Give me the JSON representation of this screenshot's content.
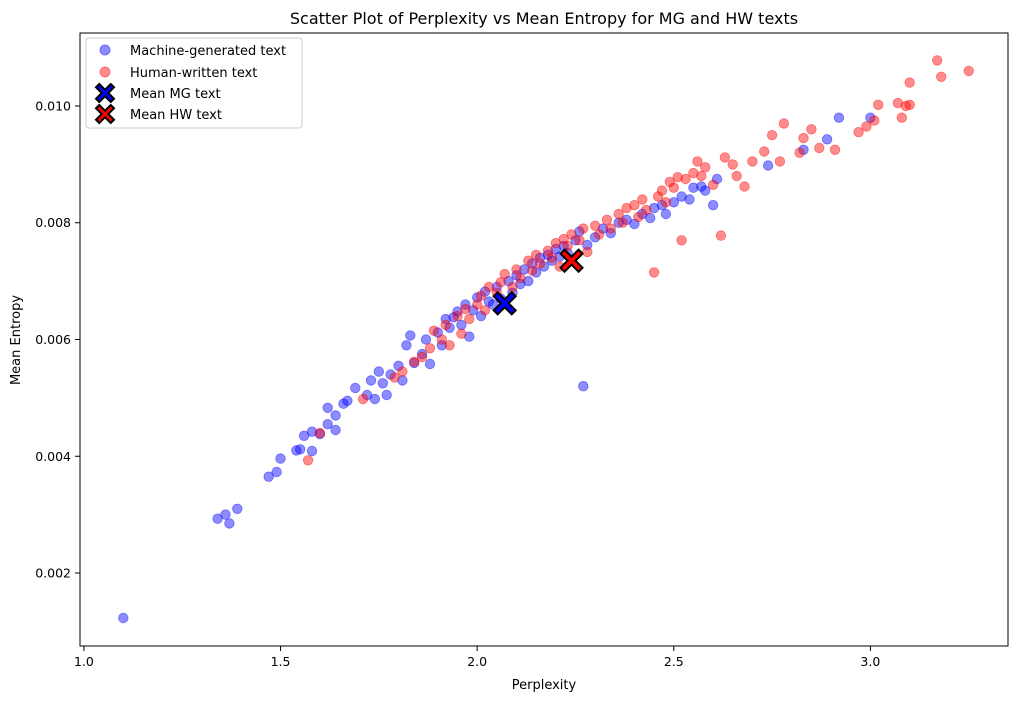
{
  "chart_data": {
    "type": "scatter",
    "title": "Scatter Plot of Perplexity vs Mean Entropy for MG and HW texts",
    "xlabel": "Perplexity",
    "ylabel": "Mean Entropy",
    "xlim": [
      0.99,
      3.35
    ],
    "ylim": [
      0.00075,
      0.01125
    ],
    "xticks": [
      1.0,
      1.5,
      2.0,
      2.5,
      3.0
    ],
    "xtick_labels": [
      "1.0",
      "1.5",
      "2.0",
      "2.5",
      "3.0"
    ],
    "yticks": [
      0.002,
      0.004,
      0.006,
      0.008,
      0.01
    ],
    "ytick_labels": [
      "0.002",
      "0.004",
      "0.006",
      "0.008",
      "0.010"
    ],
    "grid": false,
    "legend_position": "top-left",
    "series": [
      {
        "name": "Machine-generated text",
        "color": "#0000ff",
        "marker": "circle",
        "opacity": 0.45,
        "points": [
          [
            1.1,
            0.00123
          ],
          [
            1.34,
            0.00293
          ],
          [
            1.36,
            0.003
          ],
          [
            1.37,
            0.00285
          ],
          [
            1.39,
            0.0031
          ],
          [
            1.47,
            0.00365
          ],
          [
            1.49,
            0.00373
          ],
          [
            1.5,
            0.00396
          ],
          [
            1.54,
            0.0041
          ],
          [
            1.55,
            0.00412
          ],
          [
            1.56,
            0.00435
          ],
          [
            1.58,
            0.00409
          ],
          [
            1.58,
            0.00442
          ],
          [
            1.6,
            0.00438
          ],
          [
            1.62,
            0.00455
          ],
          [
            1.62,
            0.00483
          ],
          [
            1.64,
            0.00445
          ],
          [
            1.64,
            0.0047
          ],
          [
            1.66,
            0.0049
          ],
          [
            1.67,
            0.00495
          ],
          [
            1.69,
            0.00517
          ],
          [
            1.72,
            0.00505
          ],
          [
            1.73,
            0.0053
          ],
          [
            1.74,
            0.00498
          ],
          [
            1.75,
            0.00545
          ],
          [
            1.76,
            0.00525
          ],
          [
            1.77,
            0.00505
          ],
          [
            1.78,
            0.0054
          ],
          [
            1.8,
            0.00555
          ],
          [
            1.81,
            0.0053
          ],
          [
            1.82,
            0.0059
          ],
          [
            1.83,
            0.00607
          ],
          [
            1.84,
            0.0056
          ],
          [
            1.86,
            0.00575
          ],
          [
            1.87,
            0.006
          ],
          [
            1.88,
            0.00558
          ],
          [
            1.9,
            0.00612
          ],
          [
            1.91,
            0.0059
          ],
          [
            1.92,
            0.00635
          ],
          [
            1.93,
            0.0062
          ],
          [
            1.94,
            0.00638
          ],
          [
            1.95,
            0.00648
          ],
          [
            1.96,
            0.00625
          ],
          [
            1.97,
            0.0066
          ],
          [
            1.98,
            0.00605
          ],
          [
            1.99,
            0.0065
          ],
          [
            2.0,
            0.00672
          ],
          [
            2.01,
            0.0064
          ],
          [
            2.02,
            0.00682
          ],
          [
            2.03,
            0.00665
          ],
          [
            2.04,
            0.0066
          ],
          [
            2.05,
            0.0069
          ],
          [
            2.06,
            0.0067
          ],
          [
            2.08,
            0.007
          ],
          [
            2.09,
            0.0068
          ],
          [
            2.1,
            0.0071
          ],
          [
            2.11,
            0.00695
          ],
          [
            2.12,
            0.0072
          ],
          [
            2.13,
            0.007
          ],
          [
            2.14,
            0.0073
          ],
          [
            2.15,
            0.00715
          ],
          [
            2.16,
            0.0074
          ],
          [
            2.17,
            0.00725
          ],
          [
            2.18,
            0.00745
          ],
          [
            2.19,
            0.00735
          ],
          [
            2.2,
            0.00755
          ],
          [
            2.21,
            0.00742
          ],
          [
            2.22,
            0.0076
          ],
          [
            2.23,
            0.00748
          ],
          [
            2.25,
            0.0077
          ],
          [
            2.26,
            0.00785
          ],
          [
            2.27,
            0.0052
          ],
          [
            2.28,
            0.00762
          ],
          [
            2.3,
            0.00775
          ],
          [
            2.32,
            0.0079
          ],
          [
            2.34,
            0.00782
          ],
          [
            2.36,
            0.008
          ],
          [
            2.38,
            0.00805
          ],
          [
            2.4,
            0.00798
          ],
          [
            2.42,
            0.00815
          ],
          [
            2.44,
            0.00808
          ],
          [
            2.45,
            0.00825
          ],
          [
            2.47,
            0.0083
          ],
          [
            2.48,
            0.00815
          ],
          [
            2.5,
            0.00835
          ],
          [
            2.52,
            0.00845
          ],
          [
            2.54,
            0.0084
          ],
          [
            2.55,
            0.0086
          ],
          [
            2.57,
            0.00862
          ],
          [
            2.58,
            0.00855
          ],
          [
            2.6,
            0.0083
          ],
          [
            2.61,
            0.00875
          ],
          [
            2.74,
            0.00898
          ],
          [
            2.83,
            0.00925
          ],
          [
            2.89,
            0.00943
          ],
          [
            2.92,
            0.0098
          ],
          [
            3.0,
            0.0098
          ]
        ]
      },
      {
        "name": "Human-written text",
        "color": "#ff0000",
        "marker": "circle",
        "opacity": 0.45,
        "points": [
          [
            1.57,
            0.00393
          ],
          [
            1.6,
            0.0044
          ],
          [
            1.71,
            0.00498
          ],
          [
            1.79,
            0.00535
          ],
          [
            1.81,
            0.00545
          ],
          [
            1.84,
            0.00562
          ],
          [
            1.86,
            0.0057
          ],
          [
            1.88,
            0.00585
          ],
          [
            1.89,
            0.00615
          ],
          [
            1.91,
            0.006
          ],
          [
            1.92,
            0.00625
          ],
          [
            1.93,
            0.0059
          ],
          [
            1.95,
            0.0064
          ],
          [
            1.96,
            0.0061
          ],
          [
            1.97,
            0.00652
          ],
          [
            1.98,
            0.00635
          ],
          [
            2.0,
            0.0066
          ],
          [
            2.01,
            0.00675
          ],
          [
            2.02,
            0.0065
          ],
          [
            2.03,
            0.0069
          ],
          [
            2.05,
            0.0068
          ],
          [
            2.06,
            0.00698
          ],
          [
            2.07,
            0.00712
          ],
          [
            2.09,
            0.0069
          ],
          [
            2.1,
            0.0072
          ],
          [
            2.11,
            0.00705
          ],
          [
            2.13,
            0.00735
          ],
          [
            2.14,
            0.00718
          ],
          [
            2.15,
            0.00745
          ],
          [
            2.16,
            0.0073
          ],
          [
            2.18,
            0.00752
          ],
          [
            2.19,
            0.0074
          ],
          [
            2.2,
            0.00765
          ],
          [
            2.21,
            0.00725
          ],
          [
            2.22,
            0.00772
          ],
          [
            2.23,
            0.0076
          ],
          [
            2.24,
            0.0078
          ],
          [
            2.26,
            0.0077
          ],
          [
            2.27,
            0.0079
          ],
          [
            2.28,
            0.0075
          ],
          [
            2.3,
            0.00795
          ],
          [
            2.31,
            0.0078
          ],
          [
            2.33,
            0.00805
          ],
          [
            2.34,
            0.0079
          ],
          [
            2.36,
            0.00815
          ],
          [
            2.37,
            0.008
          ],
          [
            2.38,
            0.00825
          ],
          [
            2.4,
            0.0083
          ],
          [
            2.41,
            0.0081
          ],
          [
            2.42,
            0.0084
          ],
          [
            2.43,
            0.00822
          ],
          [
            2.45,
            0.00715
          ],
          [
            2.46,
            0.00845
          ],
          [
            2.47,
            0.00855
          ],
          [
            2.48,
            0.00835
          ],
          [
            2.49,
            0.0087
          ],
          [
            2.5,
            0.0086
          ],
          [
            2.51,
            0.00878
          ],
          [
            2.52,
            0.0077
          ],
          [
            2.53,
            0.00875
          ],
          [
            2.55,
            0.00885
          ],
          [
            2.56,
            0.00905
          ],
          [
            2.57,
            0.0088
          ],
          [
            2.58,
            0.00895
          ],
          [
            2.6,
            0.00865
          ],
          [
            2.62,
            0.00778
          ],
          [
            2.63,
            0.00912
          ],
          [
            2.65,
            0.009
          ],
          [
            2.66,
            0.0088
          ],
          [
            2.68,
            0.00862
          ],
          [
            2.7,
            0.00905
          ],
          [
            2.73,
            0.00922
          ],
          [
            2.75,
            0.0095
          ],
          [
            2.77,
            0.00905
          ],
          [
            2.78,
            0.0097
          ],
          [
            2.82,
            0.0092
          ],
          [
            2.83,
            0.00945
          ],
          [
            2.85,
            0.0096
          ],
          [
            2.87,
            0.00928
          ],
          [
            2.91,
            0.00925
          ],
          [
            2.97,
            0.00955
          ],
          [
            2.99,
            0.00965
          ],
          [
            3.01,
            0.00975
          ],
          [
            3.02,
            0.01002
          ],
          [
            3.07,
            0.01005
          ],
          [
            3.08,
            0.0098
          ],
          [
            3.09,
            0.01
          ],
          [
            3.1,
            0.01002
          ],
          [
            3.1,
            0.0104
          ],
          [
            3.17,
            0.01078
          ],
          [
            3.18,
            0.0105
          ],
          [
            3.25,
            0.0106
          ]
        ]
      },
      {
        "name": "Mean MG text",
        "color": "#0000ff",
        "marker": "X",
        "points": [
          [
            2.07,
            0.00662
          ]
        ]
      },
      {
        "name": "Mean HW text",
        "color": "#ff0000",
        "marker": "X",
        "points": [
          [
            2.24,
            0.00735
          ]
        ]
      }
    ]
  }
}
